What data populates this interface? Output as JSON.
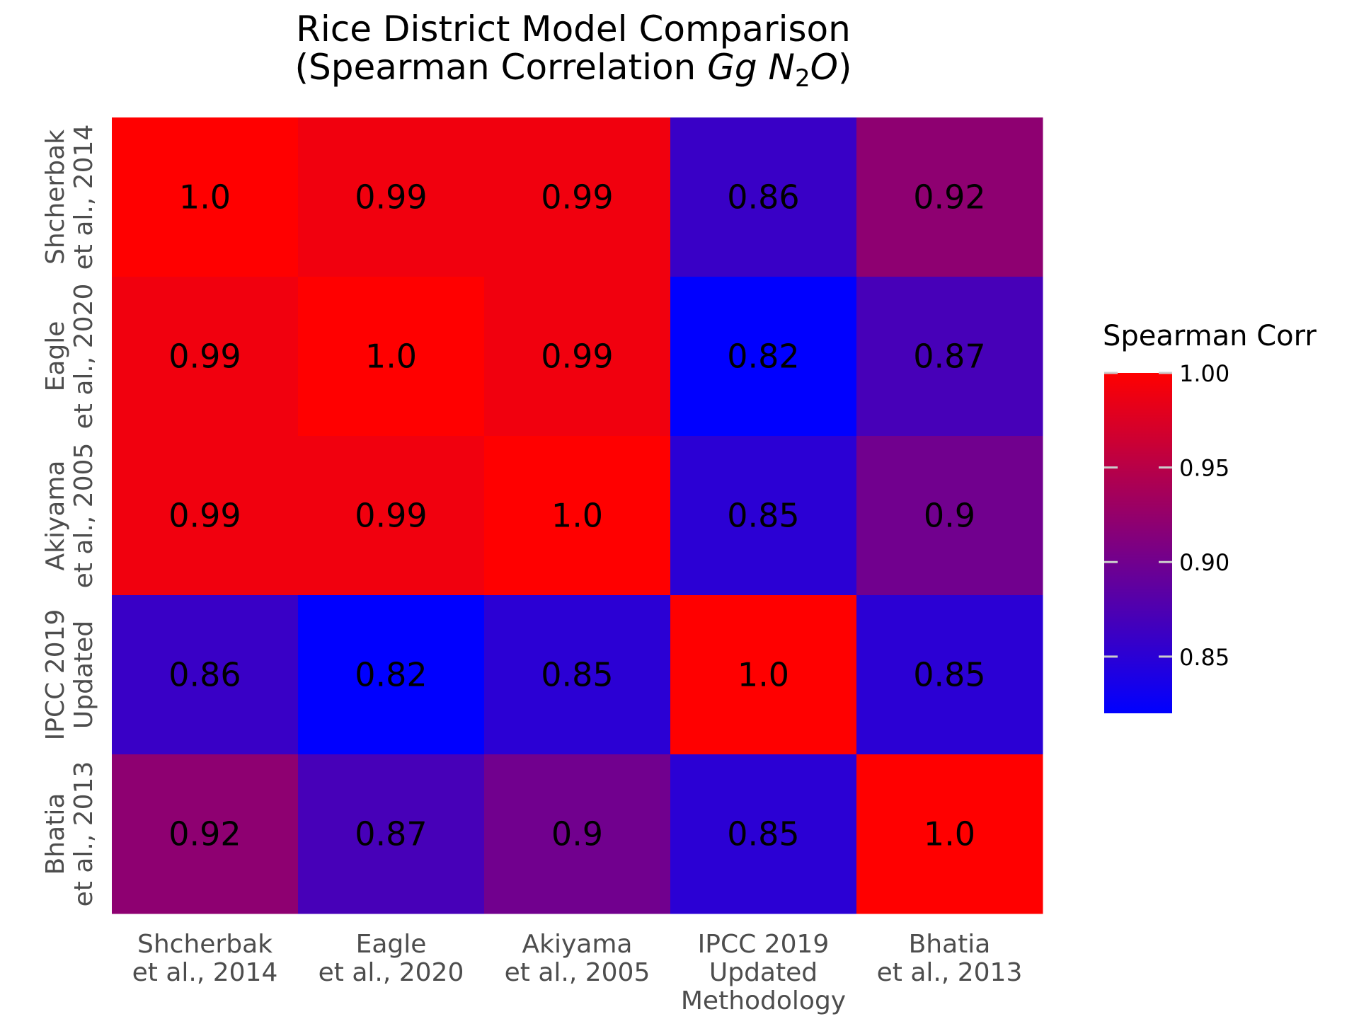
{
  "chart_data": {
    "type": "heatmap",
    "title_line1": "Rice District Model Comparison",
    "title_line2_prefix": "(Spearman Correlation ",
    "title_line2_gg": "Gg",
    "title_line2_n": "N",
    "title_line2_sub": "2",
    "title_line2_o": "O",
    "title_line2_suffix": ")",
    "columns": [
      [
        "Shcherbak",
        "et al., 2014"
      ],
      [
        "Eagle",
        "et al., 2020"
      ],
      [
        "Akiyama",
        "et al., 2005"
      ],
      [
        "IPCC 2019",
        "Updated",
        "Methodology"
      ],
      [
        "Bhatia",
        "et al., 2013"
      ]
    ],
    "rows": [
      [
        "Shcherbak",
        "et al., 2014"
      ],
      [
        "Eagle",
        "et al., 2020"
      ],
      [
        "Akiyama",
        "et al., 2005"
      ],
      [
        "IPCC 2019",
        "Updated"
      ],
      [
        "Bhatia",
        "et al., 2013"
      ]
    ],
    "values": [
      [
        1.0,
        0.99,
        0.99,
        0.86,
        0.92
      ],
      [
        0.99,
        1.0,
        0.99,
        0.82,
        0.87
      ],
      [
        0.99,
        0.99,
        1.0,
        0.85,
        0.9
      ],
      [
        0.86,
        0.82,
        0.85,
        1.0,
        0.85
      ],
      [
        0.92,
        0.87,
        0.9,
        0.85,
        1.0
      ]
    ],
    "labels": [
      [
        "1.0",
        "0.99",
        "0.99",
        "0.86",
        "0.92"
      ],
      [
        "0.99",
        "1.0",
        "0.99",
        "0.82",
        "0.87"
      ],
      [
        "0.99",
        "0.99",
        "1.0",
        "0.85",
        "0.9"
      ],
      [
        "0.86",
        "0.82",
        "0.85",
        "1.0",
        "0.85"
      ],
      [
        "0.92",
        "0.87",
        "0.9",
        "0.85",
        "1.0"
      ]
    ],
    "legend": {
      "title": "Spearman Corr",
      "min": 0.82,
      "max": 1.0,
      "ticks": [
        1.0,
        0.95,
        0.9,
        0.85
      ],
      "tick_labels": [
        "1.00",
        "0.95",
        "0.90",
        "0.85"
      ],
      "low_color": "#0000ff",
      "high_color": "#ff0000",
      "placement": "right"
    }
  }
}
